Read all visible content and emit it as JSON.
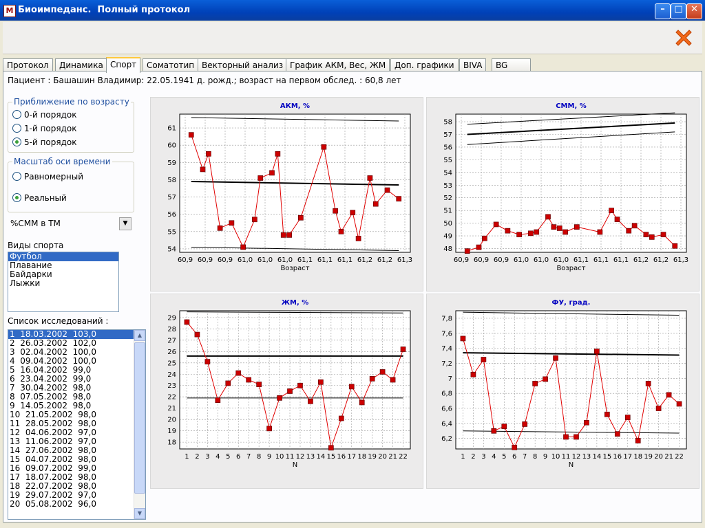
{
  "window": {
    "title": "Биоимпеданс.  Полный протокол",
    "icon": "app-logo-icon"
  },
  "tabs": [
    {
      "label": "Протокол",
      "active": false
    },
    {
      "label": "Динамика",
      "active": false
    },
    {
      "label": "Спорт",
      "active": true
    },
    {
      "label": "Соматотип",
      "active": false
    },
    {
      "label": "Векторный анализ",
      "active": false
    },
    {
      "label": "График АКМ, Вес, ЖМ",
      "active": false
    },
    {
      "label": "Доп. графики",
      "active": false
    },
    {
      "label": "BIVA",
      "active": false
    },
    {
      "label": "BG",
      "active": false
    }
  ],
  "patient": "Пациент : Башашин Владимир: 22.05.1941 д. рожд.; возраст на первом обслед. : 60,8 лет",
  "age_group": {
    "title": "Приближение по возрасту",
    "options": [
      {
        "label": "0-й порядок",
        "checked": false
      },
      {
        "label": "1-й порядок",
        "checked": false
      },
      {
        "label": "5-й порядок",
        "checked": true
      }
    ]
  },
  "time_group": {
    "title": "Масштаб оси времени",
    "options": [
      {
        "label": "Равномерный",
        "checked": false
      },
      {
        "label": "Реальный",
        "checked": true
      }
    ]
  },
  "combo": {
    "value": "%СММ в ТМ"
  },
  "sports": {
    "label": "Виды спорта",
    "items": [
      "Футбол",
      "Плавание",
      "Байдарки",
      "Лыжки"
    ],
    "selected": 0
  },
  "studies": {
    "label": "Список исследований :",
    "items": [
      "1  18.03.2002  103,0",
      "2  26.03.2002  102,0",
      "3  02.04.2002  100,0",
      "4  09.04.2002  100,0",
      "5  16.04.2002  99,0",
      "6  23.04.2002  99,0",
      "7  30.04.2002  98,0",
      "8  07.05.2002  98,0",
      "9  14.05.2002  98,0",
      "10  21.05.2002  98,0",
      "11  28.05.2002  98,0",
      "12  04.06.2002  97,0",
      "13  11.06.2002  97,0",
      "14  27.06.2002  98,0",
      "15  04.07.2002  98,0",
      "16  09.07.2002  99,0",
      "17  18.07.2002  98,0",
      "18  22.07.2002  98,0",
      "19  29.07.2002  97,0",
      "20  05.08.2002  96,0"
    ],
    "selected": 0
  },
  "colors": {
    "series": "#e00000",
    "marker": "#cc0000",
    "title": "#0000c0",
    "plot_bg": "#ffffff",
    "chart_bg": "#ecebeb"
  },
  "chart_data": [
    {
      "type": "line",
      "title": "АКМ, %",
      "xlabel": "Возраст",
      "ylabel": "",
      "x_ticks": [
        "60,9",
        "60,9",
        "60,9",
        "61,0",
        "61,0",
        "61,0",
        "61,1",
        "61,1",
        "61,1",
        "61,2",
        "61,2",
        "61,3"
      ],
      "x": [
        60.85,
        60.87,
        60.88,
        60.9,
        60.92,
        60.94,
        60.96,
        60.97,
        60.99,
        61.0,
        61.01,
        61.02,
        61.04,
        61.08,
        61.1,
        61.11,
        61.13,
        61.14,
        61.16,
        61.17,
        61.19,
        61.21
      ],
      "xlim": [
        60.83,
        61.23
      ],
      "ylim": [
        53.8,
        61.8
      ],
      "y_ticks": [
        54,
        55,
        56,
        57,
        58,
        59,
        60,
        61
      ],
      "series": [
        {
          "values": [
            60.6,
            58.6,
            59.5,
            55.2,
            55.5,
            54.1,
            55.7,
            58.1,
            58.4,
            59.5,
            54.8,
            54.8,
            55.8,
            59.9,
            56.2,
            55.0,
            56.1,
            54.6,
            58.1,
            56.6,
            57.4,
            56.9
          ]
        }
      ],
      "norm_lines": [
        {
          "from": 61.6,
          "to": 61.4,
          "weight": 1
        },
        {
          "from": 57.9,
          "to": 57.7,
          "weight": 2
        },
        {
          "from": 54.1,
          "to": 53.9,
          "weight": 1
        }
      ]
    },
    {
      "type": "line",
      "title": "СММ, %",
      "xlabel": "Возраст",
      "ylabel": "",
      "x_ticks": [
        "60,9",
        "60,9",
        "60,9",
        "61,0",
        "61,0",
        "61,0",
        "61,1",
        "61,1",
        "61,1",
        "61,2",
        "61,2",
        "61,3"
      ],
      "x": [
        60.85,
        60.87,
        60.88,
        60.9,
        60.92,
        60.94,
        60.96,
        60.97,
        60.99,
        61.0,
        61.01,
        61.02,
        61.04,
        61.08,
        61.1,
        61.11,
        61.13,
        61.14,
        61.16,
        61.17,
        61.19,
        61.21
      ],
      "xlim": [
        60.83,
        61.23
      ],
      "ylim": [
        47.7,
        58.6
      ],
      "y_ticks": [
        48,
        49,
        50,
        51,
        52,
        53,
        54,
        55,
        56,
        57,
        58
      ],
      "series": [
        {
          "values": [
            47.8,
            48.1,
            48.8,
            49.9,
            49.4,
            49.1,
            49.2,
            49.3,
            50.5,
            49.7,
            49.6,
            49.3,
            49.7,
            49.3,
            51.0,
            50.3,
            49.4,
            49.8,
            49.1,
            48.9,
            49.1,
            48.2
          ]
        }
      ],
      "norm_lines": [
        {
          "from": 57.8,
          "to": 58.7,
          "weight": 1
        },
        {
          "from": 57.0,
          "to": 57.9,
          "weight": 2
        },
        {
          "from": 56.2,
          "to": 57.2,
          "weight": 1
        }
      ]
    },
    {
      "type": "line",
      "title": "ЖМ, %",
      "xlabel": "N",
      "ylabel": "",
      "x": [
        1,
        2,
        3,
        4,
        5,
        6,
        7,
        8,
        9,
        10,
        11,
        12,
        13,
        14,
        15,
        16,
        17,
        18,
        19,
        20,
        21,
        22
      ],
      "x_ticks": [
        "1",
        "2",
        "3",
        "4",
        "5",
        "6",
        "7",
        "8",
        "9",
        "10",
        "11",
        "12",
        "13",
        "14",
        "15",
        "16",
        "17",
        "18",
        "19",
        "20",
        "21",
        "22"
      ],
      "xlim": [
        0.3,
        22.7
      ],
      "ylim": [
        17.4,
        29.6
      ],
      "y_ticks": [
        18,
        19,
        20,
        21,
        22,
        23,
        24,
        25,
        26,
        27,
        28,
        29
      ],
      "series": [
        {
          "values": [
            28.6,
            27.5,
            25.1,
            21.7,
            23.2,
            24.1,
            23.5,
            23.1,
            19.2,
            21.9,
            22.5,
            23.0,
            21.6,
            23.3,
            17.5,
            20.1,
            22.9,
            21.5,
            23.6,
            24.2,
            23.5,
            26.2
          ]
        }
      ],
      "norm_lines": [
        {
          "from": 29.5,
          "to": 29.4,
          "weight": 1
        },
        {
          "from": 25.6,
          "to": 25.6,
          "weight": 2
        },
        {
          "from": 21.9,
          "to": 21.9,
          "weight": 1
        }
      ]
    },
    {
      "type": "line",
      "title": "ФУ, град.",
      "xlabel": "N",
      "ylabel": "",
      "x": [
        1,
        2,
        3,
        4,
        5,
        6,
        7,
        8,
        9,
        10,
        11,
        12,
        13,
        14,
        15,
        16,
        17,
        18,
        19,
        20,
        21,
        22
      ],
      "x_ticks": [
        "1",
        "2",
        "3",
        "4",
        "5",
        "6",
        "7",
        "8",
        "9",
        "10",
        "11",
        "12",
        "13",
        "14",
        "15",
        "16",
        "17",
        "18",
        "19",
        "20",
        "21",
        "22"
      ],
      "xlim": [
        0.3,
        22.7
      ],
      "ylim": [
        6.06,
        7.9
      ],
      "y_ticks": [
        "6,2",
        "6,4",
        "6,6",
        "6,8",
        "7",
        "7,2",
        "7,4",
        "7,6",
        "7,8"
      ],
      "y_tick_values": [
        6.2,
        6.4,
        6.6,
        6.8,
        7.0,
        7.2,
        7.4,
        7.6,
        7.8
      ],
      "series": [
        {
          "values": [
            7.53,
            7.05,
            7.25,
            6.3,
            6.36,
            6.08,
            6.39,
            6.93,
            6.99,
            7.27,
            6.22,
            6.22,
            6.41,
            7.36,
            6.52,
            6.26,
            6.48,
            6.17,
            6.93,
            6.6,
            6.78,
            6.66
          ]
        }
      ],
      "norm_lines": [
        {
          "from": 7.88,
          "to": 7.84,
          "weight": 1
        },
        {
          "from": 7.34,
          "to": 7.31,
          "weight": 2
        },
        {
          "from": 6.3,
          "to": 6.27,
          "weight": 1
        }
      ]
    }
  ]
}
